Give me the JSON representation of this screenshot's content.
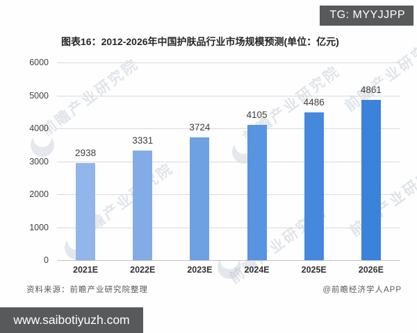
{
  "badges": {
    "tg": "TG: MYYJJPP",
    "website": "www.saibotiyuzh.com"
  },
  "chart_data": {
    "type": "bar",
    "title": "图表16：2012-2026年中国护肤品行业市场规模预测(单位：亿元)",
    "categories": [
      "2021E",
      "2022E",
      "2023E",
      "2024E",
      "2025E",
      "2026E"
    ],
    "values": [
      2938,
      3331,
      3724,
      4105,
      4486,
      4861
    ],
    "unit": "亿元",
    "ylim": [
      0,
      6000
    ],
    "yticks": [
      0,
      1000,
      2000,
      3000,
      4000,
      5000,
      6000
    ],
    "grid": true,
    "legend": "none",
    "bar_colors": [
      "#92b6ea",
      "#82ace6",
      "#6ea1e2",
      "#5894df",
      "#4589dd",
      "#3a82da"
    ]
  },
  "footer": {
    "source": "资料来源：前瞻产业研究院整理",
    "credit": "@前瞻经济学人APP"
  },
  "watermark": {
    "text": "前瞻产业研究院"
  },
  "colors": {
    "badge_bg": "#58595b",
    "badge_text": "#ffffff",
    "gridline": "#d9d9d9"
  }
}
